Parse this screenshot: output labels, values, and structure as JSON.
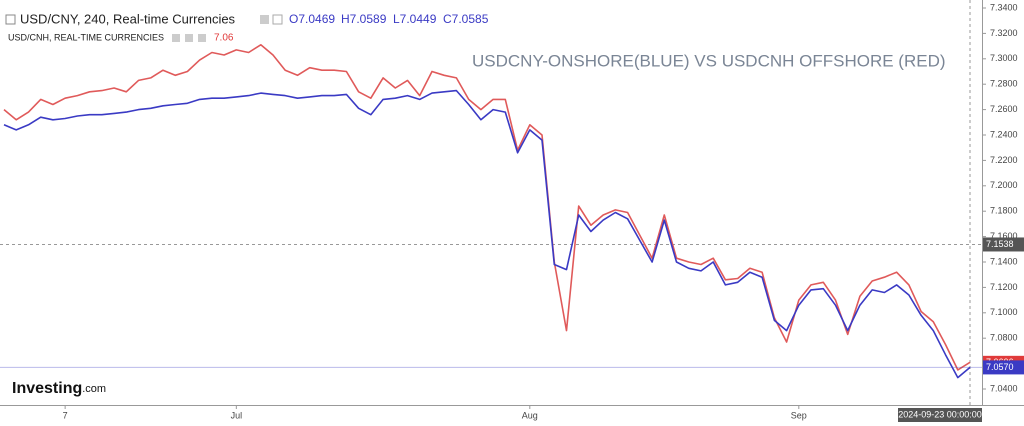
{
  "chart_data": {
    "type": "line",
    "header": {
      "main_symbol": "USD/CNY, 240, Real-time Currencies",
      "ohlc": [
        "O7.0469",
        "H7.0589",
        "L7.0449",
        "C7.0585"
      ],
      "compare_symbol": "USD/CNH, REAL-TIME CURRENCIES",
      "compare_value": "7.06"
    },
    "annotation": "USDCNY-ONSHORE(BLUE) VS USDCNH OFFSHORE (RED)",
    "logo": "Investing",
    "logo_suffix": ".com",
    "categories": [
      null,
      null,
      null,
      null,
      null,
      "7",
      null,
      null,
      null,
      null,
      null,
      null,
      null,
      null,
      null,
      null,
      null,
      null,
      null,
      "Jul",
      null,
      null,
      null,
      null,
      null,
      null,
      null,
      null,
      null,
      null,
      null,
      null,
      null,
      null,
      null,
      null,
      null,
      null,
      null,
      null,
      null,
      null,
      null,
      "Aug",
      null,
      null,
      null,
      null,
      null,
      null,
      null,
      null,
      null,
      null,
      null,
      null,
      null,
      null,
      null,
      null,
      null,
      null,
      null,
      null,
      null,
      "Sep",
      null,
      null,
      null,
      null,
      null,
      null,
      null,
      null,
      null,
      null,
      null,
      null,
      null,
      null
    ],
    "series": [
      {
        "name": "USD/CNH",
        "color": "#e05a5a",
        "values": [
          7.26,
          7.252,
          7.258,
          7.268,
          7.264,
          7.269,
          7.271,
          7.274,
          7.275,
          7.277,
          7.274,
          7.283,
          7.285,
          7.291,
          7.287,
          7.29,
          7.299,
          7.305,
          7.303,
          7.307,
          7.305,
          7.311,
          7.303,
          7.291,
          7.287,
          7.293,
          7.291,
          7.291,
          7.29,
          7.274,
          7.269,
          7.285,
          7.277,
          7.283,
          7.271,
          7.29,
          7.287,
          7.285,
          7.268,
          7.26,
          7.268,
          7.268,
          7.228,
          7.248,
          7.24,
          7.14,
          7.086,
          7.184,
          7.169,
          7.177,
          7.181,
          7.179,
          7.161,
          7.143,
          7.177,
          7.143,
          7.14,
          7.138,
          7.143,
          7.126,
          7.127,
          7.135,
          7.132,
          7.096,
          7.077,
          7.11,
          7.122,
          7.124,
          7.11,
          7.083,
          7.113,
          7.125,
          7.128,
          7.132,
          7.122,
          7.101,
          7.093,
          7.075,
          7.055,
          7.061
        ]
      },
      {
        "name": "USD/CNY",
        "color": "#3a3ac4",
        "values": [
          7.248,
          7.244,
          7.248,
          7.254,
          7.252,
          7.253,
          7.255,
          7.256,
          7.256,
          7.257,
          7.258,
          7.26,
          7.261,
          7.263,
          7.264,
          7.265,
          7.268,
          7.269,
          7.269,
          7.27,
          7.271,
          7.273,
          7.272,
          7.271,
          7.269,
          7.27,
          7.271,
          7.271,
          7.272,
          7.261,
          7.256,
          7.268,
          7.269,
          7.271,
          7.268,
          7.273,
          7.274,
          7.275,
          7.264,
          7.252,
          7.26,
          7.258,
          7.226,
          7.244,
          7.236,
          7.138,
          7.134,
          7.177,
          7.164,
          7.173,
          7.179,
          7.174,
          7.157,
          7.14,
          7.173,
          7.14,
          7.135,
          7.133,
          7.14,
          7.122,
          7.124,
          7.132,
          7.128,
          7.094,
          7.086,
          7.106,
          7.118,
          7.119,
          7.106,
          7.086,
          7.106,
          7.118,
          7.116,
          7.122,
          7.114,
          7.098,
          7.086,
          7.067,
          7.049,
          7.057
        ]
      }
    ],
    "ylim": [
      7.0274,
      7.3463
    ],
    "yticks": [
      {
        "value": 7.04,
        "label": "7.0400"
      },
      {
        "value": 7.06,
        "label": "7.0600"
      },
      {
        "value": 7.08,
        "label": "7.0800"
      },
      {
        "value": 7.1,
        "label": "7.1000"
      },
      {
        "value": 7.12,
        "label": "7.1200"
      },
      {
        "value": 7.14,
        "label": "7.1400"
      },
      {
        "value": 7.16,
        "label": "7.1600"
      },
      {
        "value": 7.18,
        "label": "7.1800"
      },
      {
        "value": 7.2,
        "label": "7.2000"
      },
      {
        "value": 7.22,
        "label": "7.2200"
      },
      {
        "value": 7.24,
        "label": "7.2400"
      },
      {
        "value": 7.26,
        "label": "7.2600"
      },
      {
        "value": 7.28,
        "label": "7.2800"
      },
      {
        "value": 7.3,
        "label": "7.3000"
      },
      {
        "value": 7.32,
        "label": "7.3200"
      },
      {
        "value": 7.34,
        "label": "7.3400"
      }
    ],
    "crosshair_y": 7.1538,
    "crosshair_x_label": "2024-09-23 00:00:00",
    "price_tags": [
      {
        "value": 7.0606,
        "label": "7.0606",
        "color": "#e03a3a"
      },
      {
        "value": 7.057,
        "label": "7.0570",
        "color": "#3a3ac4"
      }
    ]
  }
}
